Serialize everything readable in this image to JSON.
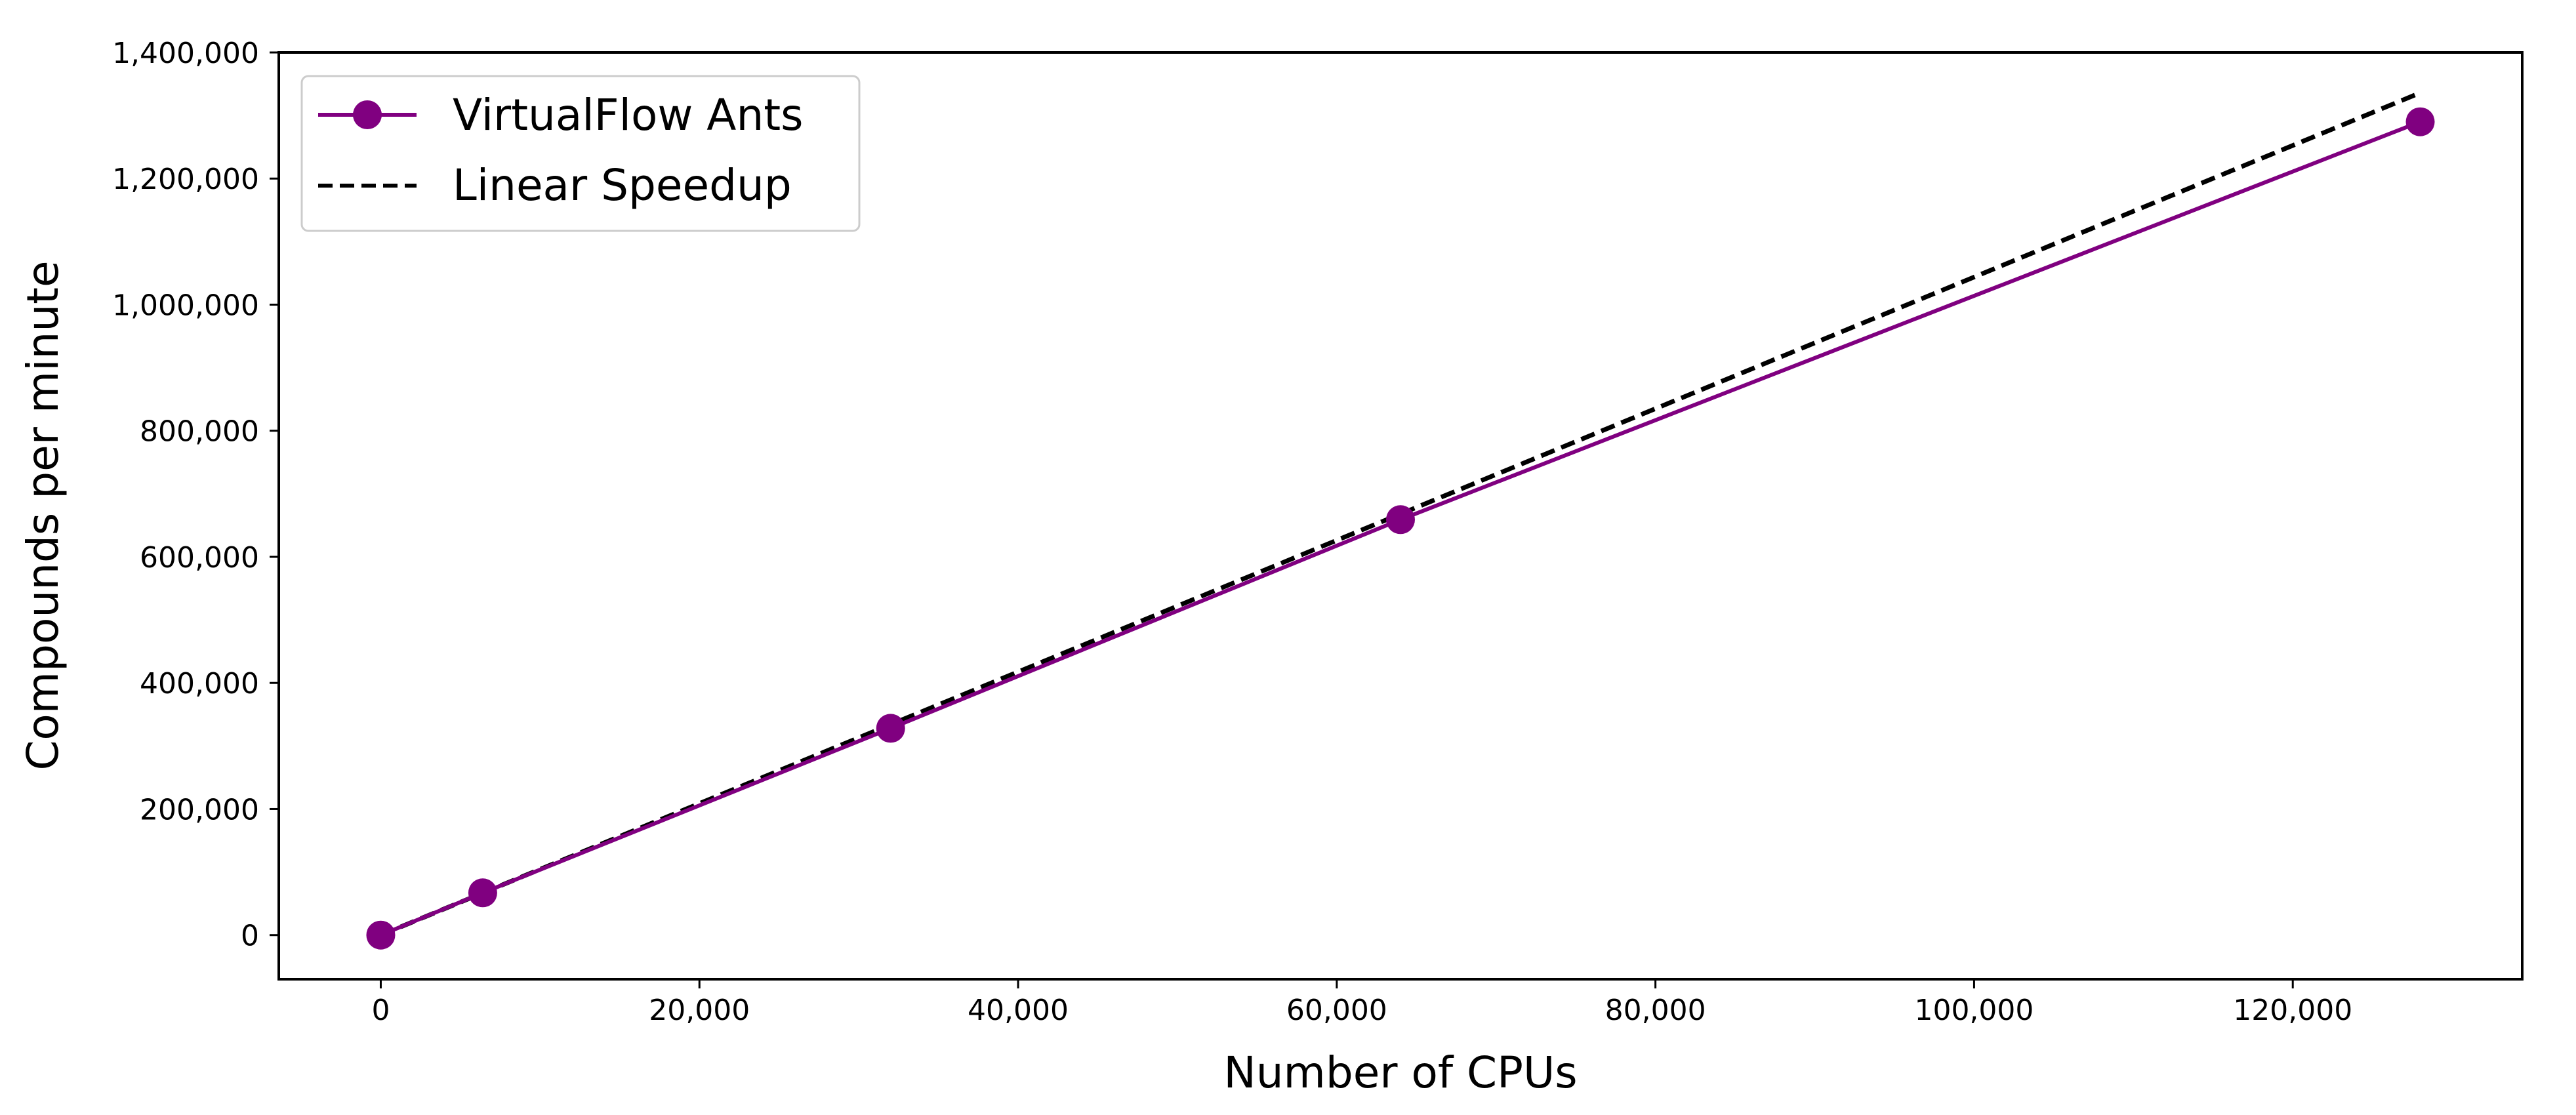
{
  "chart_data": {
    "type": "line",
    "xlabel": "Number of CPUs",
    "ylabel": "Compounds per minute",
    "xlim": [
      -6400,
      134400
    ],
    "ylim": [
      -70000,
      1400000
    ],
    "x_ticks": [
      0,
      20000,
      40000,
      60000,
      80000,
      100000,
      120000
    ],
    "x_tick_labels": [
      "0",
      "20,000",
      "40,000",
      "60,000",
      "80,000",
      "100,000",
      "120,000"
    ],
    "y_ticks": [
      0,
      200000,
      400000,
      600000,
      800000,
      1000000,
      1200000,
      1400000
    ],
    "y_tick_labels": [
      "0",
      "200,000",
      "400,000",
      "600,000",
      "800,000",
      "1,000,000",
      "1,200,000",
      "1,400,000"
    ],
    "grid": false,
    "legend_position": "top-left",
    "series": [
      {
        "name": "VirtualFlow Ants",
        "style": "solid-with-markers",
        "color": "#800080",
        "x": [
          0,
          6400,
          32000,
          64000,
          128000
        ],
        "y": [
          0,
          67000,
          328000,
          659000,
          1290000
        ]
      },
      {
        "name": "Linear Speedup",
        "style": "dashed",
        "color": "#000000",
        "x": [
          0,
          128000
        ],
        "y": [
          0,
          1336000
        ]
      }
    ]
  }
}
